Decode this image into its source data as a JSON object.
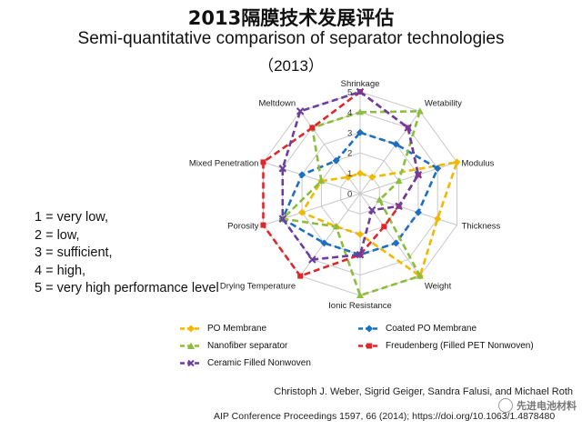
{
  "header": {
    "title_cn": "2013隔膜技术发展评估",
    "title_en": "Semi-quantitative comparison of separator technologies",
    "year": "（2013）"
  },
  "scale_key": [
    "1 = very low,",
    "2 = low,",
    "3 = sufficient,",
    "4 = high,",
    "5 = very high performance level"
  ],
  "citation": {
    "authors": "Christoph J. Weber, Sigrid Geiger, Sandra Falusi, and Michael Roth",
    "source": "AIP Conference Proceedings 1597, 66 (2014); https://doi.org/10.1063/1.4878480"
  },
  "watermark": "先进电池材料",
  "chart_data": {
    "type": "radar",
    "axes": [
      "Shrinkage",
      "Wetability",
      "Modulus",
      "Thickness",
      "Weight",
      "Ionic Resistance",
      "Drying Temperature",
      "Porosity",
      "Mixed Penetration",
      "Meltdown"
    ],
    "tick_labels": [
      "0",
      "1",
      "2",
      "3",
      "4",
      "5"
    ],
    "range": [
      0,
      5
    ],
    "legend_position": "bottom",
    "series": [
      {
        "name": "PO Membrane",
        "color": "#f2b800",
        "marker": "diamond",
        "values": [
          1,
          1,
          5,
          4,
          5,
          2,
          2,
          3,
          2,
          1
        ]
      },
      {
        "name": "Coated PO Membrane",
        "color": "#1f6fc0",
        "marker": "diamond",
        "values": [
          3,
          3,
          4,
          3,
          3,
          3,
          3,
          4,
          3,
          2
        ]
      },
      {
        "name": "Nanofiber  separator",
        "color": "#8cbd3c",
        "marker": "triangle",
        "values": [
          4,
          5,
          2,
          1,
          5,
          5,
          2,
          4,
          2,
          4
        ]
      },
      {
        "name": "Freudenberg (Filled PET Nonwoven)",
        "color": "#e0262b",
        "marker": "square",
        "values": [
          5,
          4,
          3,
          2,
          2,
          3,
          5,
          5,
          5,
          4
        ]
      },
      {
        "name": "Ceramic Filled Nonwoven",
        "color": "#6b3fa0",
        "marker": "cross",
        "values": [
          5,
          4,
          3,
          2,
          1,
          3,
          4,
          4,
          4,
          5
        ]
      }
    ]
  }
}
